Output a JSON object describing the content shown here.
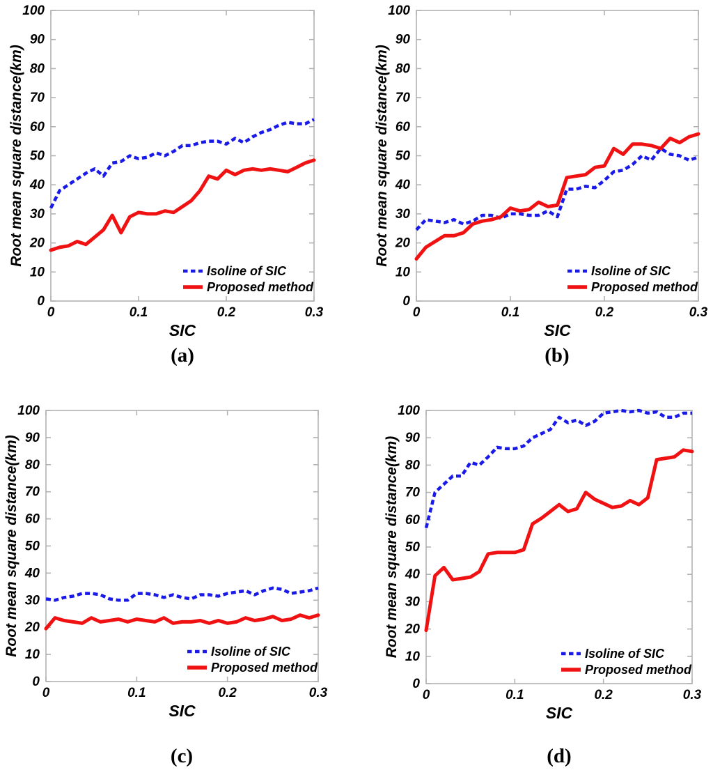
{
  "figure": {
    "background": "#ffffff",
    "axis_color": "#b2b2b2",
    "text_color": "#000000",
    "isoline_color": "#1a1ae8",
    "proposed_color": "#f01212"
  },
  "chart_data": [
    {
      "panel_label": "(a)",
      "type": "line",
      "title": "",
      "xlabel": "SIC",
      "ylabel": "Root mean square distance(km)",
      "xlim": [
        0,
        0.3
      ],
      "ylim": [
        0,
        100
      ],
      "xtick_labels": [
        "0",
        "0.1",
        "0.2",
        "0.3"
      ],
      "xtick_values": [
        0,
        0.1,
        0.2,
        0.3
      ],
      "yticks": [
        0,
        10,
        20,
        30,
        40,
        50,
        60,
        70,
        80,
        90,
        100
      ],
      "grid": false,
      "legend_position": "lower right",
      "x": [
        0,
        0.01,
        0.02,
        0.03,
        0.04,
        0.05,
        0.06,
        0.07,
        0.08,
        0.09,
        0.1,
        0.11,
        0.12,
        0.13,
        0.14,
        0.15,
        0.16,
        0.17,
        0.18,
        0.19,
        0.2,
        0.21,
        0.22,
        0.23,
        0.24,
        0.25,
        0.26,
        0.27,
        0.28,
        0.29,
        0.3
      ],
      "series": [
        {
          "name": "Isoline of SIC",
          "line_style": "dashed",
          "color": "#1a1ae8",
          "values": [
            32,
            38,
            40,
            42,
            44,
            45.5,
            43,
            47.5,
            48,
            50,
            49,
            49.5,
            51,
            50,
            51.5,
            53.5,
            53.5,
            54.5,
            55,
            55,
            54,
            56,
            54.5,
            56.5,
            58,
            59,
            60.5,
            61.5,
            61,
            61,
            62.5
          ]
        },
        {
          "name": "Proposed method",
          "line_style": "solid",
          "color": "#f01212",
          "values": [
            17.5,
            18.5,
            19,
            20.5,
            19.5,
            22,
            24.5,
            29.5,
            23.5,
            29,
            30.5,
            30,
            30,
            31,
            30.5,
            32.5,
            34.5,
            38,
            43,
            42,
            45,
            43.5,
            45,
            45.5,
            45,
            45.5,
            45,
            44.5,
            46,
            47.5,
            48.5
          ]
        }
      ]
    },
    {
      "panel_label": "(b)",
      "type": "line",
      "title": "",
      "xlabel": "SIC",
      "ylabel": "Root mean square distance(km)",
      "xlim": [
        0,
        0.3
      ],
      "ylim": [
        0,
        100
      ],
      "xtick_labels": [
        "0",
        "0.1",
        "0.2",
        "0.3"
      ],
      "xtick_values": [
        0,
        0.1,
        0.2,
        0.3
      ],
      "yticks": [
        0,
        10,
        20,
        30,
        40,
        50,
        60,
        70,
        80,
        90,
        100
      ],
      "grid": false,
      "legend_position": "lower right",
      "x": [
        0,
        0.01,
        0.02,
        0.03,
        0.04,
        0.05,
        0.06,
        0.07,
        0.08,
        0.09,
        0.1,
        0.11,
        0.12,
        0.13,
        0.14,
        0.15,
        0.16,
        0.17,
        0.18,
        0.19,
        0.2,
        0.21,
        0.22,
        0.23,
        0.24,
        0.25,
        0.26,
        0.27,
        0.28,
        0.29,
        0.3
      ],
      "series": [
        {
          "name": "Isoline of SIC",
          "line_style": "dashed",
          "color": "#1a1ae8",
          "values": [
            24.5,
            28,
            27.5,
            27,
            28,
            26.5,
            27.5,
            29.5,
            29.5,
            28.5,
            30,
            30,
            29.5,
            29.5,
            31,
            29,
            38.5,
            38.5,
            39.5,
            39,
            41.5,
            44.5,
            45,
            47,
            50,
            48.5,
            52.5,
            50.5,
            50,
            48.5,
            49.5
          ]
        },
        {
          "name": "Proposed method",
          "line_style": "solid",
          "color": "#f01212",
          "values": [
            14.5,
            18.5,
            20.5,
            22.5,
            22.5,
            23.5,
            26.5,
            27.5,
            28,
            29,
            32,
            31,
            31.5,
            34,
            32.5,
            33,
            42.5,
            43,
            43.5,
            46,
            46.5,
            52.5,
            50.5,
            54,
            54,
            53.5,
            52.5,
            56,
            54.5,
            56.5,
            57.5
          ]
        }
      ]
    },
    {
      "panel_label": "(c)",
      "type": "line",
      "title": "",
      "xlabel": "SIC",
      "ylabel": "Root mean square distance(km)",
      "xlim": [
        0,
        0.3
      ],
      "ylim": [
        0,
        100
      ],
      "xtick_labels": [
        "0",
        "0.1",
        "0.2",
        "0.3"
      ],
      "xtick_values": [
        0,
        0.1,
        0.2,
        0.3
      ],
      "yticks": [
        0,
        10,
        20,
        30,
        40,
        50,
        60,
        70,
        80,
        90,
        100
      ],
      "grid": false,
      "legend_position": "lower right",
      "x": [
        0,
        0.01,
        0.02,
        0.03,
        0.04,
        0.05,
        0.06,
        0.07,
        0.08,
        0.09,
        0.1,
        0.11,
        0.12,
        0.13,
        0.14,
        0.15,
        0.16,
        0.17,
        0.18,
        0.19,
        0.2,
        0.21,
        0.22,
        0.23,
        0.24,
        0.25,
        0.26,
        0.27,
        0.28,
        0.29,
        0.3
      ],
      "series": [
        {
          "name": "Isoline of SIC",
          "line_style": "dashed",
          "color": "#1a1ae8",
          "values": [
            30.5,
            30,
            31,
            31.5,
            32.5,
            32.5,
            32,
            30.5,
            30,
            30,
            32.5,
            32.5,
            32,
            31,
            32,
            31,
            30.5,
            32,
            32,
            31.5,
            32.5,
            33,
            33.5,
            32,
            33.5,
            34.5,
            34,
            32.5,
            33,
            33.5,
            34.5
          ]
        },
        {
          "name": "Proposed method",
          "line_style": "solid",
          "color": "#f01212",
          "values": [
            19.5,
            23.5,
            22.5,
            22,
            21.5,
            23.5,
            22,
            22.5,
            23,
            22,
            23,
            22.5,
            22,
            23.5,
            21.5,
            22,
            22,
            22.5,
            21.5,
            22.5,
            21.5,
            22,
            23.5,
            22.5,
            23,
            24,
            22.5,
            23,
            24.5,
            23.5,
            24.5
          ]
        }
      ]
    },
    {
      "panel_label": "(d)",
      "type": "line",
      "title": "",
      "xlabel": "SIC",
      "ylabel": "Root mean square distance(km)",
      "xlim": [
        0,
        0.3
      ],
      "ylim": [
        0,
        100
      ],
      "xtick_labels": [
        "0",
        "0.1",
        "0.2",
        "0.3"
      ],
      "xtick_values": [
        0,
        0.1,
        0.2,
        0.3
      ],
      "yticks": [
        0,
        10,
        20,
        30,
        40,
        50,
        60,
        70,
        80,
        90,
        100
      ],
      "grid": false,
      "legend_position": "lower right",
      "x": [
        0,
        0.01,
        0.02,
        0.03,
        0.04,
        0.05,
        0.06,
        0.07,
        0.08,
        0.09,
        0.1,
        0.11,
        0.12,
        0.13,
        0.14,
        0.15,
        0.16,
        0.17,
        0.18,
        0.19,
        0.2,
        0.21,
        0.22,
        0.23,
        0.24,
        0.25,
        0.26,
        0.27,
        0.28,
        0.29,
        0.3
      ],
      "series": [
        {
          "name": "Isoline of SIC",
          "line_style": "dashed",
          "color": "#1a1ae8",
          "values": [
            57,
            70,
            73,
            76,
            76,
            81,
            80,
            83,
            86.5,
            86,
            86,
            87,
            90,
            91.5,
            93,
            97.5,
            95.5,
            96.5,
            94.5,
            96,
            99,
            99.5,
            100,
            99.5,
            100,
            99,
            99.5,
            97.5,
            97.5,
            99,
            99
          ]
        },
        {
          "name": "Proposed method",
          "line_style": "solid",
          "color": "#f01212",
          "values": [
            19.5,
            39.5,
            42.5,
            38,
            38.5,
            39,
            41,
            47.5,
            48,
            48,
            48,
            49,
            58.5,
            60.5,
            63,
            65.5,
            63,
            64,
            70,
            67.5,
            66,
            64.5,
            65,
            67,
            65.5,
            68,
            82,
            82.5,
            83,
            85.5,
            85
          ]
        }
      ]
    }
  ]
}
